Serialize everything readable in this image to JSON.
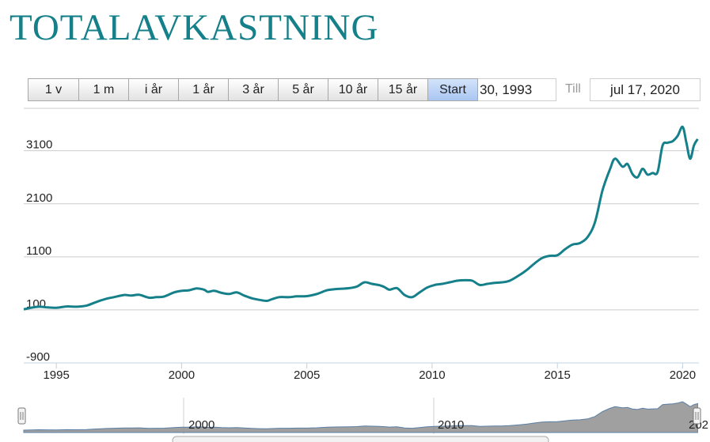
{
  "page": {
    "title": "TOTALAVKASTNING"
  },
  "range_selector": {
    "buttons": [
      {
        "label": "1 v",
        "active": false
      },
      {
        "label": "1 m",
        "active": false
      },
      {
        "label": "i år",
        "active": false
      },
      {
        "label": "1 år",
        "active": false
      },
      {
        "label": "3 år",
        "active": false
      },
      {
        "label": "5 år",
        "active": false
      },
      {
        "label": "10 år",
        "active": false
      },
      {
        "label": "15 år",
        "active": false
      },
      {
        "label": "Start",
        "active": true
      }
    ],
    "from_value": "30, 1993",
    "till_label": "Till",
    "to_value": "jul 17, 2020"
  },
  "colors": {
    "title": "#16808a",
    "line": "#16808a",
    "active_button": "#b4cdf3",
    "navigator_fill": "#8f8f8f",
    "navigator_line": "#5b7fa6"
  },
  "chart_data": {
    "type": "line",
    "title": "",
    "xlabel": "",
    "ylabel": "",
    "xlim": [
      1993.7,
      2020.65
    ],
    "ylim": [
      -900,
      3900
    ],
    "yticks": [
      -900,
      100,
      1100,
      2100,
      3100
    ],
    "ytick_labels": [
      "-900",
      "100",
      "1100",
      "2100",
      "3100"
    ],
    "xticks": [
      1995,
      2000,
      2005,
      2010,
      2015,
      2020
    ],
    "xtick_labels": [
      "1995",
      "2000",
      "2005",
      "2010",
      "2015",
      "2020"
    ],
    "grid": true,
    "series": [
      {
        "x": [
          1993.7,
          1994.0,
          1994.3,
          1994.6,
          1995.0,
          1995.4,
          1995.8,
          1996.2,
          1996.6,
          1997.0,
          1997.3,
          1997.7,
          1998.0,
          1998.3,
          1998.7,
          1999.0,
          1999.3,
          1999.7,
          2000.0,
          2000.3,
          2000.6,
          2000.9,
          2001.05,
          2001.3,
          2001.6,
          2001.9,
          2002.2,
          2002.5,
          2002.8,
          2003.1,
          2003.4,
          2003.6,
          2003.9,
          2004.3,
          2004.6,
          2005.0,
          2005.4,
          2005.8,
          2006.1,
          2006.4,
          2006.7,
          2007.0,
          2007.3,
          2007.6,
          2007.9,
          2008.1,
          2008.3,
          2008.6,
          2008.9,
          2009.2,
          2009.5,
          2009.8,
          2010.1,
          2010.4,
          2010.7,
          2011.0,
          2011.3,
          2011.6,
          2011.9,
          2012.2,
          2012.5,
          2012.8,
          2013.1,
          2013.5,
          2013.8,
          2014.1,
          2014.4,
          2014.7,
          2015.0,
          2015.3,
          2015.6,
          2015.9,
          2016.2,
          2016.5,
          2016.8,
          2017.1,
          2017.3,
          2017.6,
          2017.8,
          2018.0,
          2018.2,
          2018.4,
          2018.6,
          2018.8,
          2019.0,
          2019.2,
          2019.4,
          2019.6,
          2019.8,
          2020.0,
          2020.15,
          2020.3,
          2020.45,
          2020.6
        ],
        "y": [
          110,
          140,
          160,
          150,
          140,
          165,
          160,
          180,
          250,
          310,
          340,
          380,
          370,
          385,
          330,
          340,
          350,
          430,
          460,
          470,
          505,
          480,
          440,
          460,
          420,
          400,
          430,
          370,
          320,
          290,
          270,
          300,
          340,
          340,
          355,
          360,
          400,
          470,
          490,
          500,
          510,
          540,
          620,
          590,
          565,
          530,
          480,
          510,
          380,
          340,
          430,
          520,
          570,
          590,
          620,
          650,
          660,
          650,
          570,
          590,
          610,
          620,
          650,
          760,
          860,
          980,
          1080,
          1120,
          1130,
          1240,
          1330,
          1360,
          1470,
          1750,
          2350,
          2750,
          2950,
          2800,
          2850,
          2660,
          2600,
          2760,
          2650,
          2680,
          2700,
          3200,
          3250,
          3280,
          3380,
          3550,
          3250,
          2950,
          3200,
          3320
        ]
      }
    ],
    "navigator": {
      "xtick_labels": [
        "2000",
        "2010",
        "202"
      ]
    }
  }
}
